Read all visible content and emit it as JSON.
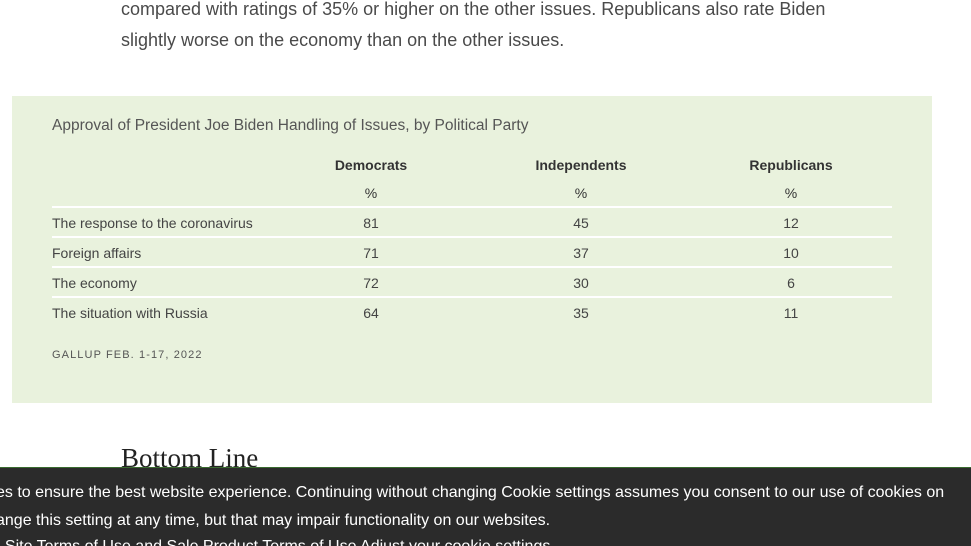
{
  "article": {
    "line1": "compared with ratings of 35% or higher on the other issues. Republicans also rate Biden",
    "line2": "slightly worse on the economy than on the other issues."
  },
  "table": {
    "title": "Approval of President Joe Biden Handling of Issues, by Political Party",
    "columns": [
      {
        "label": "Democrats",
        "unit": "%"
      },
      {
        "label": "Independents",
        "unit": "%"
      },
      {
        "label": "Republicans",
        "unit": "%"
      }
    ],
    "rows": [
      {
        "label": "The response to the coronavirus",
        "values": [
          "81",
          "45",
          "12"
        ]
      },
      {
        "label": "Foreign affairs",
        "values": [
          "71",
          "37",
          "10"
        ]
      },
      {
        "label": "The economy",
        "values": [
          "72",
          "30",
          "6"
        ]
      },
      {
        "label": "The situation with Russia",
        "values": [
          "64",
          "35",
          "11"
        ]
      }
    ],
    "source": "GALLUP FEB. 1-17, 2022"
  },
  "section": {
    "heading": "Bottom Line"
  },
  "cookie_banner": {
    "line1": "es to ensure the best website experience. Continuing without changing Cookie settings assumes you consent to our use of cookies on",
    "line2": "ange this setting at any time, but that may impair functionality on our websites.",
    "links": [
      "Site Terms of Use and Sale",
      "Product Terms of Use",
      "Adjust your cookie settings"
    ],
    "link_prefix": ". "
  },
  "colors": {
    "panel_background": "#e9f2dd",
    "banner_background": "#2b2b2b"
  }
}
